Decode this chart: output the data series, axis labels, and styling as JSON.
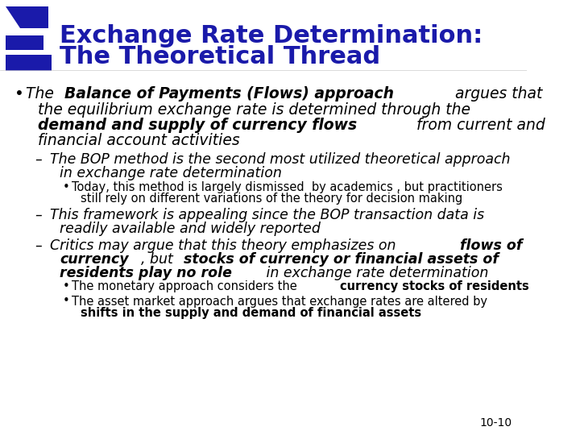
{
  "bg_color": "#ffffff",
  "header_bg": "#1a1aaa",
  "header_text_color": "#ffffff",
  "title_line1": "Exchange Rate Determination:",
  "title_line2": "The Theoretical Thread",
  "title_color": "#1a1aaa",
  "logo_color": "#1a1aaa",
  "body_color": "#000000",
  "page_num": "10-10",
  "font_family": "DejaVu Sans"
}
